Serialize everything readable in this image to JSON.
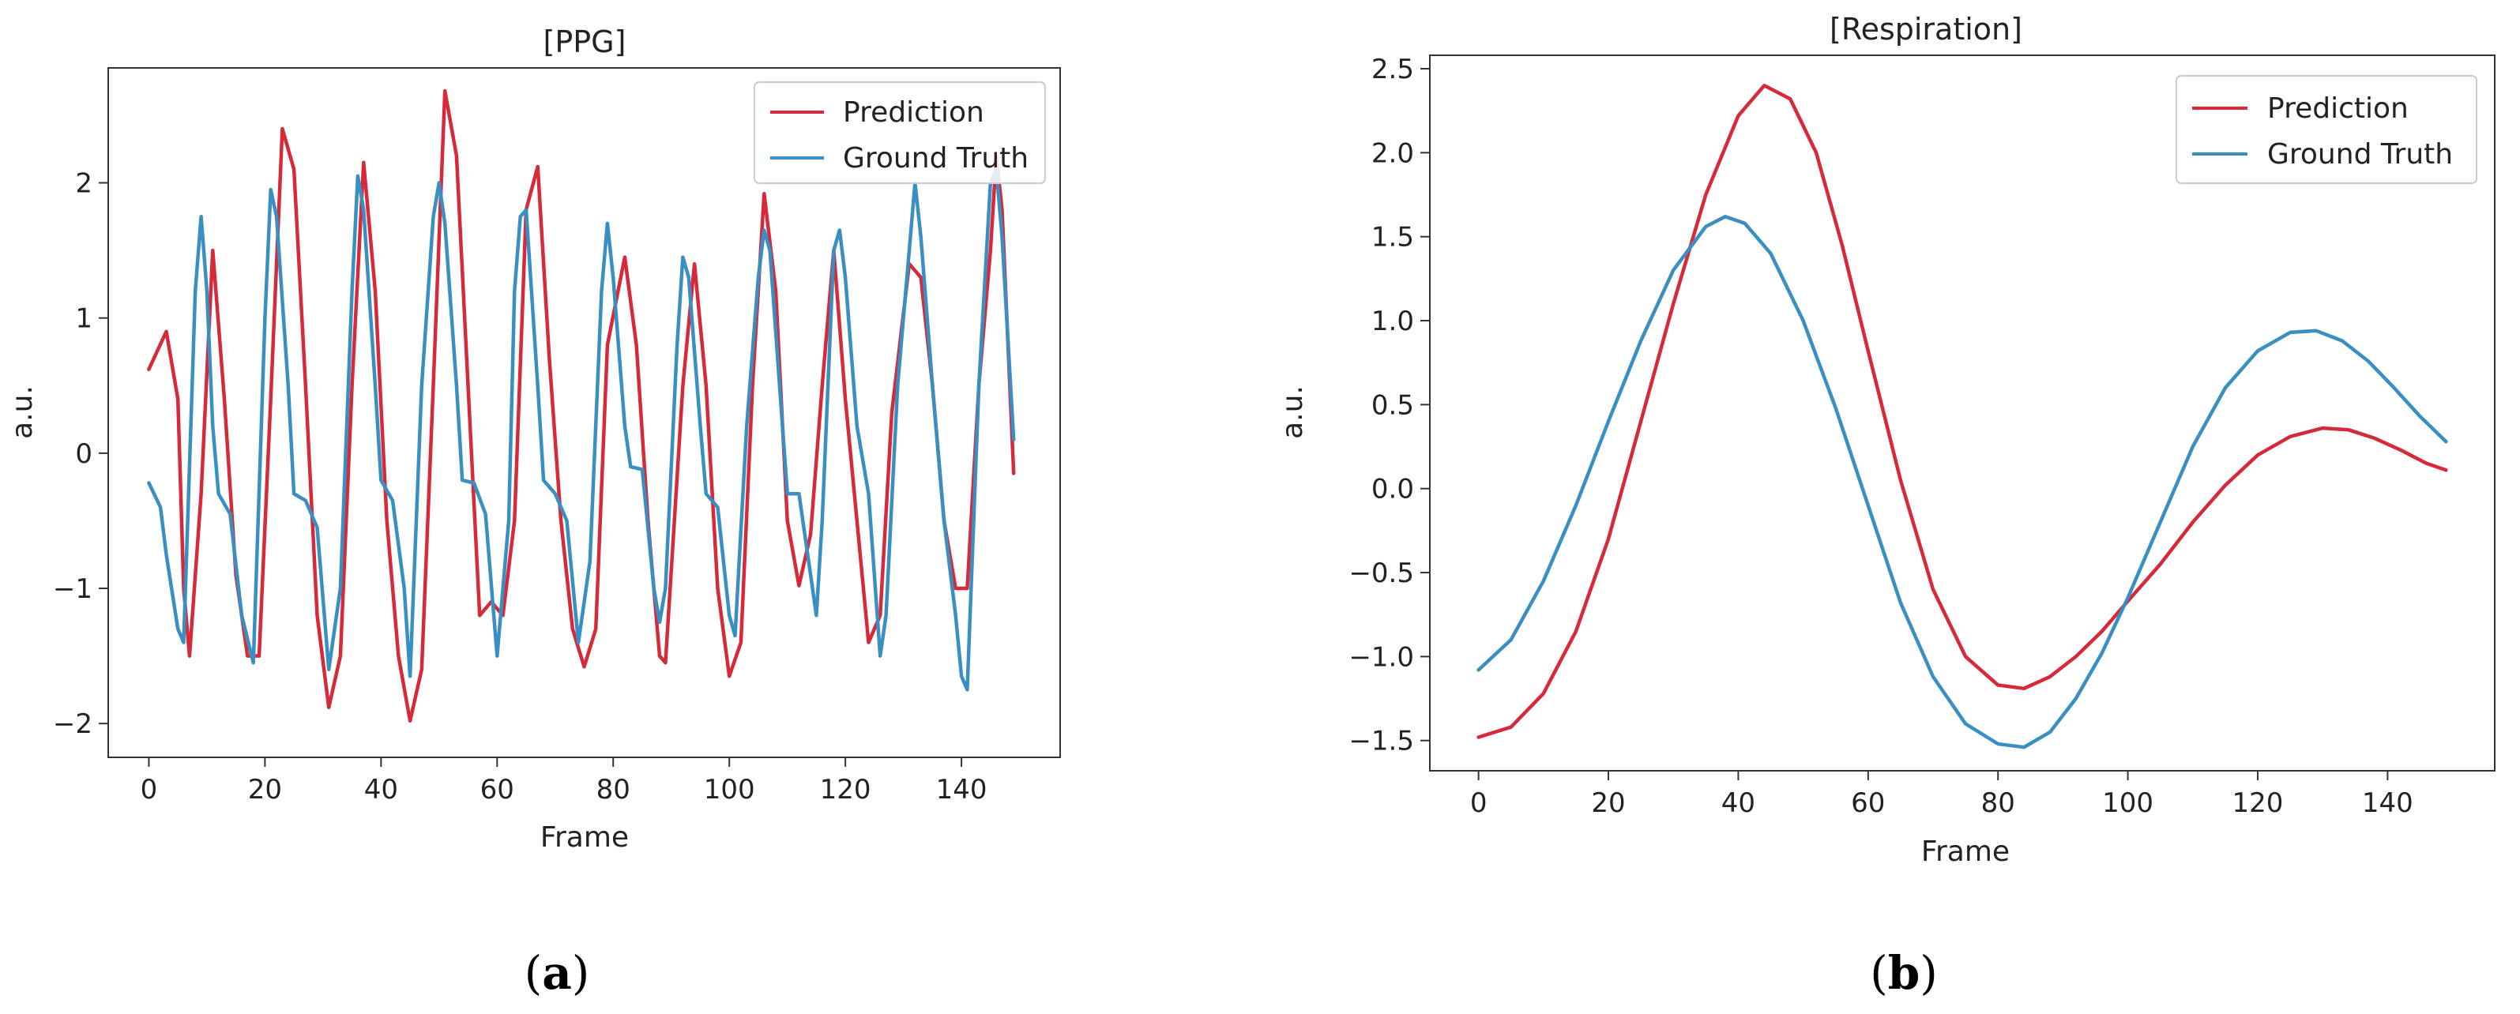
{
  "figure": {
    "background": "#ffffff"
  },
  "chart_data": [
    {
      "id": "ppg",
      "type": "line",
      "panel_label": "a",
      "title": "[PPG]",
      "xlabel": "Frame",
      "ylabel": "a.u.",
      "xlim": [
        -7,
        157
      ],
      "ylim": [
        -2.25,
        2.85
      ],
      "xticks": [
        0,
        20,
        40,
        60,
        80,
        100,
        120,
        140
      ],
      "xtick_labels": [
        "0",
        "20",
        "40",
        "60",
        "80",
        "100",
        "120",
        "140"
      ],
      "yticks": [
        -2,
        -1,
        0,
        1,
        2
      ],
      "ytick_labels": [
        "−2",
        "−1",
        "0",
        "1",
        "2"
      ],
      "legend_position": "top-right",
      "grid": false,
      "series": [
        {
          "name": "Prediction",
          "color": "#d62a3a",
          "points": [
            [
              0,
              0.62
            ],
            [
              3,
              0.9
            ],
            [
              5,
              0.4
            ],
            [
              6,
              -1.0
            ],
            [
              7,
              -1.5
            ],
            [
              9,
              -0.3
            ],
            [
              11,
              1.5
            ],
            [
              13,
              0.4
            ],
            [
              15,
              -0.9
            ],
            [
              17,
              -1.5
            ],
            [
              19,
              -1.5
            ],
            [
              21,
              0.4
            ],
            [
              23,
              2.4
            ],
            [
              25,
              2.1
            ],
            [
              27,
              0.5
            ],
            [
              29,
              -1.2
            ],
            [
              31,
              -1.88
            ],
            [
              33,
              -1.5
            ],
            [
              35,
              0.5
            ],
            [
              37,
              2.15
            ],
            [
              39,
              1.2
            ],
            [
              41,
              -0.5
            ],
            [
              43,
              -1.5
            ],
            [
              45,
              -1.98
            ],
            [
              47,
              -1.6
            ],
            [
              49,
              0.5
            ],
            [
              51,
              2.68
            ],
            [
              53,
              2.2
            ],
            [
              55,
              0.5
            ],
            [
              57,
              -1.2
            ],
            [
              59,
              -1.1
            ],
            [
              61,
              -1.2
            ],
            [
              63,
              -0.5
            ],
            [
              65,
              1.8
            ],
            [
              67,
              2.12
            ],
            [
              69,
              0.7
            ],
            [
              71,
              -0.5
            ],
            [
              73,
              -1.3
            ],
            [
              75,
              -1.58
            ],
            [
              77,
              -1.3
            ],
            [
              79,
              0.8
            ],
            [
              82,
              1.45
            ],
            [
              84,
              0.8
            ],
            [
              86,
              -0.5
            ],
            [
              88,
              -1.5
            ],
            [
              89,
              -1.55
            ],
            [
              92,
              0.5
            ],
            [
              94,
              1.4
            ],
            [
              96,
              0.5
            ],
            [
              98,
              -1.0
            ],
            [
              100,
              -1.65
            ],
            [
              102,
              -1.4
            ],
            [
              104,
              0.5
            ],
            [
              106,
              1.92
            ],
            [
              108,
              1.2
            ],
            [
              110,
              -0.5
            ],
            [
              112,
              -0.98
            ],
            [
              114,
              -0.6
            ],
            [
              116,
              0.5
            ],
            [
              118,
              1.5
            ],
            [
              120,
              0.4
            ],
            [
              122,
              -0.5
            ],
            [
              124,
              -1.4
            ],
            [
              126,
              -1.2
            ],
            [
              128,
              0.3
            ],
            [
              131,
              1.4
            ],
            [
              133,
              1.3
            ],
            [
              135,
              0.5
            ],
            [
              137,
              -0.5
            ],
            [
              139,
              -1.0
            ],
            [
              141,
              -1.0
            ],
            [
              143,
              0.5
            ],
            [
              145,
              1.5
            ],
            [
              146,
              2.2
            ],
            [
              147,
              1.8
            ],
            [
              149,
              -0.15
            ]
          ]
        },
        {
          "name": "Ground Truth",
          "color": "#3a8fc2",
          "points": [
            [
              0,
              -0.22
            ],
            [
              2,
              -0.4
            ],
            [
              3,
              -0.75
            ],
            [
              5,
              -1.3
            ],
            [
              6,
              -1.4
            ],
            [
              8,
              1.2
            ],
            [
              9,
              1.75
            ],
            [
              10,
              1.2
            ],
            [
              11,
              0.2
            ],
            [
              12,
              -0.3
            ],
            [
              14,
              -0.45
            ],
            [
              16,
              -1.2
            ],
            [
              18,
              -1.55
            ],
            [
              20,
              1.0
            ],
            [
              21,
              1.95
            ],
            [
              22,
              1.75
            ],
            [
              24,
              0.5
            ],
            [
              25,
              -0.3
            ],
            [
              27,
              -0.35
            ],
            [
              29,
              -0.55
            ],
            [
              31,
              -1.6
            ],
            [
              33,
              -1.0
            ],
            [
              35,
              1.2
            ],
            [
              36,
              2.05
            ],
            [
              37,
              1.8
            ],
            [
              39,
              0.5
            ],
            [
              40,
              -0.2
            ],
            [
              42,
              -0.35
            ],
            [
              44,
              -1.0
            ],
            [
              45,
              -1.65
            ],
            [
              47,
              0.5
            ],
            [
              49,
              1.75
            ],
            [
              50,
              2.0
            ],
            [
              51,
              1.7
            ],
            [
              53,
              0.5
            ],
            [
              54,
              -0.2
            ],
            [
              56,
              -0.22
            ],
            [
              58,
              -0.45
            ],
            [
              60,
              -1.5
            ],
            [
              62,
              -0.5
            ],
            [
              63,
              1.2
            ],
            [
              64,
              1.75
            ],
            [
              65,
              1.8
            ],
            [
              67,
              0.5
            ],
            [
              68,
              -0.2
            ],
            [
              70,
              -0.3
            ],
            [
              72,
              -0.5
            ],
            [
              74,
              -1.4
            ],
            [
              76,
              -0.8
            ],
            [
              78,
              1.2
            ],
            [
              79,
              1.7
            ],
            [
              80,
              1.3
            ],
            [
              82,
              0.2
            ],
            [
              83,
              -0.1
            ],
            [
              85,
              -0.12
            ],
            [
              87,
              -1.0
            ],
            [
              88,
              -1.25
            ],
            [
              89,
              -1.0
            ],
            [
              91,
              0.8
            ],
            [
              92,
              1.45
            ],
            [
              93,
              1.3
            ],
            [
              95,
              0.2
            ],
            [
              96,
              -0.3
            ],
            [
              98,
              -0.4
            ],
            [
              100,
              -1.2
            ],
            [
              101,
              -1.35
            ],
            [
              103,
              0.2
            ],
            [
              105,
              1.3
            ],
            [
              106,
              1.65
            ],
            [
              107,
              1.5
            ],
            [
              109,
              0.3
            ],
            [
              110,
              -0.3
            ],
            [
              112,
              -0.3
            ],
            [
              114,
              -0.9
            ],
            [
              115,
              -1.2
            ],
            [
              116,
              -0.5
            ],
            [
              118,
              1.5
            ],
            [
              119,
              1.65
            ],
            [
              120,
              1.3
            ],
            [
              122,
              0.2
            ],
            [
              124,
              -0.3
            ],
            [
              126,
              -1.5
            ],
            [
              127,
              -1.2
            ],
            [
              129,
              0.5
            ],
            [
              131,
              1.5
            ],
            [
              132,
              2.0
            ],
            [
              133,
              1.6
            ],
            [
              135,
              0.5
            ],
            [
              137,
              -0.5
            ],
            [
              139,
              -1.2
            ],
            [
              140,
              -1.65
            ],
            [
              141,
              -1.75
            ],
            [
              143,
              0.5
            ],
            [
              145,
              2.0
            ],
            [
              146,
              2.1
            ],
            [
              147,
              1.6
            ],
            [
              149,
              0.1
            ]
          ]
        }
      ]
    },
    {
      "id": "respiration",
      "type": "line",
      "panel_label": "b",
      "title": "[Respiration]",
      "xlabel": "Frame",
      "ylabel": "a.u.",
      "xlim": [
        -7.5,
        156.5
      ],
      "ylim": [
        -1.68,
        2.58
      ],
      "xticks": [
        0,
        20,
        40,
        60,
        80,
        100,
        120,
        140
      ],
      "xtick_labels": [
        "0",
        "20",
        "40",
        "60",
        "80",
        "100",
        "120",
        "140"
      ],
      "yticks": [
        -1.5,
        -1.0,
        -0.5,
        0.0,
        0.5,
        1.0,
        1.5,
        2.0,
        2.5
      ],
      "ytick_labels": [
        "−1.5",
        "−1.0",
        "−0.5",
        "0.0",
        "0.5",
        "1.0",
        "1.5",
        "2.0",
        "2.5"
      ],
      "legend_position": "top-right",
      "grid": false,
      "series": [
        {
          "name": "Prediction",
          "color": "#d62a3a",
          "points": [
            [
              0,
              -1.48
            ],
            [
              5,
              -1.42
            ],
            [
              10,
              -1.22
            ],
            [
              15,
              -0.85
            ],
            [
              20,
              -0.3
            ],
            [
              25,
              0.4
            ],
            [
              30,
              1.1
            ],
            [
              35,
              1.75
            ],
            [
              40,
              2.22
            ],
            [
              44,
              2.4
            ],
            [
              48,
              2.32
            ],
            [
              52,
              2.0
            ],
            [
              56,
              1.45
            ],
            [
              60,
              0.82
            ],
            [
              65,
              0.05
            ],
            [
              70,
              -0.6
            ],
            [
              75,
              -1.0
            ],
            [
              80,
              -1.17
            ],
            [
              84,
              -1.19
            ],
            [
              88,
              -1.12
            ],
            [
              92,
              -1.0
            ],
            [
              96,
              -0.85
            ],
            [
              100,
              -0.67
            ],
            [
              105,
              -0.45
            ],
            [
              110,
              -0.2
            ],
            [
              115,
              0.02
            ],
            [
              120,
              0.2
            ],
            [
              125,
              0.31
            ],
            [
              130,
              0.36
            ],
            [
              134,
              0.35
            ],
            [
              138,
              0.3
            ],
            [
              142,
              0.23
            ],
            [
              146,
              0.15
            ],
            [
              149,
              0.11
            ]
          ]
        },
        {
          "name": "Ground Truth",
          "color": "#3a8fc2",
          "points": [
            [
              0,
              -1.08
            ],
            [
              5,
              -0.9
            ],
            [
              10,
              -0.55
            ],
            [
              15,
              -0.1
            ],
            [
              20,
              0.4
            ],
            [
              25,
              0.88
            ],
            [
              30,
              1.3
            ],
            [
              35,
              1.56
            ],
            [
              38,
              1.62
            ],
            [
              41,
              1.58
            ],
            [
              45,
              1.4
            ],
            [
              50,
              1.0
            ],
            [
              55,
              0.48
            ],
            [
              60,
              -0.1
            ],
            [
              65,
              -0.68
            ],
            [
              70,
              -1.12
            ],
            [
              75,
              -1.4
            ],
            [
              80,
              -1.52
            ],
            [
              84,
              -1.54
            ],
            [
              88,
              -1.45
            ],
            [
              92,
              -1.25
            ],
            [
              96,
              -0.98
            ],
            [
              100,
              -0.65
            ],
            [
              105,
              -0.2
            ],
            [
              110,
              0.25
            ],
            [
              115,
              0.6
            ],
            [
              120,
              0.82
            ],
            [
              125,
              0.93
            ],
            [
              129,
              0.94
            ],
            [
              133,
              0.88
            ],
            [
              137,
              0.76
            ],
            [
              141,
              0.6
            ],
            [
              145,
              0.43
            ],
            [
              149,
              0.28
            ]
          ]
        }
      ]
    }
  ]
}
